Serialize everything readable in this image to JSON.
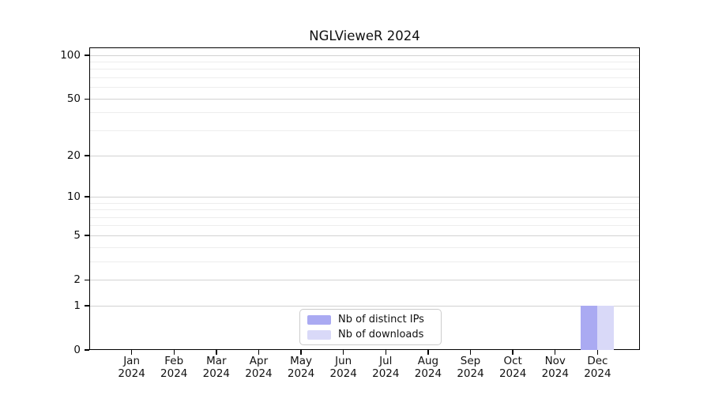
{
  "chart_data": {
    "type": "bar",
    "title": "NGLVieweR 2024",
    "categories": [
      "Jan 2024",
      "Feb 2024",
      "Mar 2024",
      "Apr 2024",
      "May 2024",
      "Jun 2024",
      "Jul 2024",
      "Aug 2024",
      "Sep 2024",
      "Oct 2024",
      "Nov 2024",
      "Dec 2024"
    ],
    "series": [
      {
        "name": "Nb of distinct IPs",
        "color": "#aaaaf2",
        "values": [
          0,
          0,
          0,
          0,
          0,
          0,
          0,
          0,
          0,
          0,
          0,
          1
        ]
      },
      {
        "name": "Nb of downloads",
        "color": "#d9d9f8",
        "values": [
          0,
          0,
          0,
          0,
          0,
          0,
          0,
          0,
          0,
          0,
          0,
          1
        ]
      }
    ],
    "y_axis": {
      "scale": "log10(value+1)",
      "ticks": [
        0,
        1,
        2,
        5,
        10,
        20,
        50,
        100
      ],
      "minor_ticks": [
        3,
        4,
        6,
        7,
        8,
        9,
        30,
        40,
        60,
        70,
        80,
        90
      ],
      "ylim": [
        0,
        113
      ]
    },
    "x_axis": {
      "label_format": "month over year"
    },
    "legend": {
      "position": "lower center"
    },
    "grid": true,
    "background": "#ffffff"
  },
  "colors": {
    "major_grid": "#d2d2d2",
    "minor_grid": "#ededed",
    "frame": "#000000",
    "legend_border": "#cccccc",
    "text": "#111111"
  }
}
